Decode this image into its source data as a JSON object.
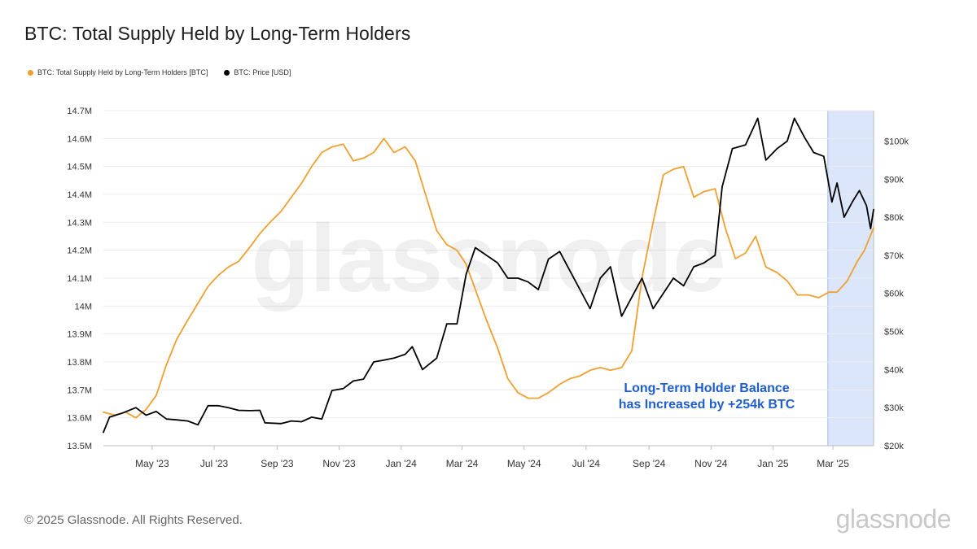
{
  "page": {
    "title": "BTC: Total Supply Held by Long-Term Holders",
    "copyright": "© 2025 Glassnode. All Rights Reserved.",
    "brand": "glassnode",
    "watermark": "glassnode"
  },
  "legend": [
    {
      "label": "BTC: Total Supply Held by Long-Term Holders [BTC]",
      "color": "#f0a030"
    },
    {
      "label": "BTC: Price [USD]",
      "color": "#000000"
    }
  ],
  "annotation": {
    "line1": "Long-Term Holder Balance",
    "line2": "has Increased by +254k BTC",
    "color": "#1f5fcc"
  },
  "chart_data": {
    "type": "line",
    "x_range": [
      "2023-03-14",
      "2025-04-10"
    ],
    "x_ticks": [
      {
        "date": "2023-05-01",
        "label": "May '23"
      },
      {
        "date": "2023-07-01",
        "label": "Jul '23"
      },
      {
        "date": "2023-09-01",
        "label": "Sep '23"
      },
      {
        "date": "2023-11-01",
        "label": "Nov '23"
      },
      {
        "date": "2024-01-01",
        "label": "Jan '24"
      },
      {
        "date": "2024-03-01",
        "label": "Mar '24"
      },
      {
        "date": "2024-05-01",
        "label": "May '24"
      },
      {
        "date": "2024-07-01",
        "label": "Jul '24"
      },
      {
        "date": "2024-09-01",
        "label": "Sep '24"
      },
      {
        "date": "2024-11-01",
        "label": "Nov '24"
      },
      {
        "date": "2025-01-01",
        "label": "Jan '25"
      },
      {
        "date": "2025-03-01",
        "label": "Mar '25"
      }
    ],
    "y_left": {
      "range": [
        13.5,
        14.7
      ],
      "unit": "M BTC",
      "ticks": [
        {
          "value": 13.5,
          "label": "13.5M"
        },
        {
          "value": 13.6,
          "label": "13.6M"
        },
        {
          "value": 13.7,
          "label": "13.7M"
        },
        {
          "value": 13.8,
          "label": "13.8M"
        },
        {
          "value": 13.9,
          "label": "13.9M"
        },
        {
          "value": 14.0,
          "label": "14M"
        },
        {
          "value": 14.1,
          "label": "14.1M"
        },
        {
          "value": 14.2,
          "label": "14.2M"
        },
        {
          "value": 14.3,
          "label": "14.3M"
        },
        {
          "value": 14.4,
          "label": "14.4M"
        },
        {
          "value": 14.5,
          "label": "14.5M"
        },
        {
          "value": 14.6,
          "label": "14.6M"
        },
        {
          "value": 14.7,
          "label": "14.7M"
        }
      ]
    },
    "y_right": {
      "range": [
        20000,
        108000
      ],
      "unit": "USD",
      "ticks": [
        {
          "value": 20000,
          "label": "$20k"
        },
        {
          "value": 30000,
          "label": "$30k"
        },
        {
          "value": 40000,
          "label": "$40k"
        },
        {
          "value": 50000,
          "label": "$50k"
        },
        {
          "value": 60000,
          "label": "$60k"
        },
        {
          "value": 70000,
          "label": "$70k"
        },
        {
          "value": 80000,
          "label": "$80k"
        },
        {
          "value": 90000,
          "label": "$90k"
        },
        {
          "value": 100000,
          "label": "$100k"
        }
      ]
    },
    "highlight": {
      "start": "2025-02-24",
      "end": "2025-04-10",
      "color": "#dbe6fb"
    },
    "grid": "horizontal",
    "legend_position": "top-left",
    "series": [
      {
        "name": "BTC: Total Supply Held by Long-Term Holders [BTC]",
        "axis": "left",
        "color": "#f0a030",
        "points": [
          [
            "2023-03-14",
            13.62
          ],
          [
            "2023-03-25",
            13.61
          ],
          [
            "2023-04-05",
            13.62
          ],
          [
            "2023-04-15",
            13.6
          ],
          [
            "2023-04-25",
            13.63
          ],
          [
            "2023-05-05",
            13.68
          ],
          [
            "2023-05-15",
            13.79
          ],
          [
            "2023-05-25",
            13.88
          ],
          [
            "2023-06-05",
            13.95
          ],
          [
            "2023-06-15",
            14.01
          ],
          [
            "2023-06-25",
            14.07
          ],
          [
            "2023-07-05",
            14.11
          ],
          [
            "2023-07-15",
            14.14
          ],
          [
            "2023-07-25",
            14.16
          ],
          [
            "2023-08-05",
            14.21
          ],
          [
            "2023-08-15",
            14.26
          ],
          [
            "2023-08-25",
            14.3
          ],
          [
            "2023-09-05",
            14.34
          ],
          [
            "2023-09-15",
            14.39
          ],
          [
            "2023-09-25",
            14.44
          ],
          [
            "2023-10-05",
            14.5
          ],
          [
            "2023-10-15",
            14.55
          ],
          [
            "2023-10-25",
            14.57
          ],
          [
            "2023-11-05",
            14.58
          ],
          [
            "2023-11-15",
            14.52
          ],
          [
            "2023-11-25",
            14.53
          ],
          [
            "2023-12-05",
            14.55
          ],
          [
            "2023-12-15",
            14.6
          ],
          [
            "2023-12-25",
            14.55
          ],
          [
            "2024-01-05",
            14.57
          ],
          [
            "2024-01-15",
            14.52
          ],
          [
            "2024-01-25",
            14.4
          ],
          [
            "2024-02-05",
            14.27
          ],
          [
            "2024-02-15",
            14.22
          ],
          [
            "2024-02-25",
            14.2
          ],
          [
            "2024-03-05",
            14.15
          ],
          [
            "2024-03-15",
            14.05
          ],
          [
            "2024-03-25",
            13.95
          ],
          [
            "2024-04-05",
            13.85
          ],
          [
            "2024-04-15",
            13.74
          ],
          [
            "2024-04-25",
            13.69
          ],
          [
            "2024-05-05",
            13.67
          ],
          [
            "2024-05-15",
            13.67
          ],
          [
            "2024-05-25",
            13.69
          ],
          [
            "2024-06-05",
            13.72
          ],
          [
            "2024-06-15",
            13.74
          ],
          [
            "2024-06-25",
            13.75
          ],
          [
            "2024-07-05",
            13.77
          ],
          [
            "2024-07-15",
            13.78
          ],
          [
            "2024-07-25",
            13.77
          ],
          [
            "2024-08-05",
            13.78
          ],
          [
            "2024-08-15",
            13.84
          ],
          [
            "2024-08-25",
            14.1
          ],
          [
            "2024-09-05",
            14.3
          ],
          [
            "2024-09-15",
            14.47
          ],
          [
            "2024-09-25",
            14.49
          ],
          [
            "2024-10-05",
            14.5
          ],
          [
            "2024-10-15",
            14.39
          ],
          [
            "2024-10-25",
            14.41
          ],
          [
            "2024-11-05",
            14.42
          ],
          [
            "2024-11-15",
            14.28
          ],
          [
            "2024-11-25",
            14.17
          ],
          [
            "2024-12-05",
            14.19
          ],
          [
            "2024-12-15",
            14.25
          ],
          [
            "2024-12-25",
            14.14
          ],
          [
            "2025-01-05",
            14.12
          ],
          [
            "2025-01-15",
            14.09
          ],
          [
            "2025-01-25",
            14.04
          ],
          [
            "2025-02-05",
            14.04
          ],
          [
            "2025-02-15",
            14.03
          ],
          [
            "2025-02-25",
            14.05
          ],
          [
            "2025-03-05",
            14.05
          ],
          [
            "2025-03-15",
            14.09
          ],
          [
            "2025-03-25",
            14.16
          ],
          [
            "2025-04-01",
            14.2
          ],
          [
            "2025-04-10",
            14.28
          ]
        ]
      },
      {
        "name": "BTC: Price [USD]",
        "axis": "right",
        "color": "#000000",
        "points": [
          [
            "2023-03-14",
            23500
          ],
          [
            "2023-03-20",
            27500
          ],
          [
            "2023-04-01",
            28500
          ],
          [
            "2023-04-15",
            30000
          ],
          [
            "2023-04-25",
            28000
          ],
          [
            "2023-05-05",
            29000
          ],
          [
            "2023-05-15",
            27000
          ],
          [
            "2023-05-25",
            26800
          ],
          [
            "2023-06-05",
            26500
          ],
          [
            "2023-06-15",
            25500
          ],
          [
            "2023-06-25",
            30500
          ],
          [
            "2023-07-05",
            30500
          ],
          [
            "2023-07-15",
            30000
          ],
          [
            "2023-07-25",
            29300
          ],
          [
            "2023-08-05",
            29200
          ],
          [
            "2023-08-15",
            29300
          ],
          [
            "2023-08-20",
            26000
          ],
          [
            "2023-09-05",
            25800
          ],
          [
            "2023-09-15",
            26500
          ],
          [
            "2023-09-25",
            26300
          ],
          [
            "2023-10-05",
            27500
          ],
          [
            "2023-10-15",
            27000
          ],
          [
            "2023-10-25",
            34500
          ],
          [
            "2023-11-05",
            35000
          ],
          [
            "2023-11-15",
            37000
          ],
          [
            "2023-11-25",
            37500
          ],
          [
            "2023-12-05",
            42000
          ],
          [
            "2023-12-15",
            42500
          ],
          [
            "2023-12-25",
            43000
          ],
          [
            "2024-01-05",
            44000
          ],
          [
            "2024-01-12",
            46000
          ],
          [
            "2024-01-22",
            40000
          ],
          [
            "2024-02-05",
            43000
          ],
          [
            "2024-02-15",
            52000
          ],
          [
            "2024-02-25",
            52000
          ],
          [
            "2024-03-05",
            65000
          ],
          [
            "2024-03-14",
            72000
          ],
          [
            "2024-03-25",
            70000
          ],
          [
            "2024-04-05",
            68000
          ],
          [
            "2024-04-15",
            64000
          ],
          [
            "2024-04-25",
            64000
          ],
          [
            "2024-05-05",
            63000
          ],
          [
            "2024-05-15",
            61000
          ],
          [
            "2024-05-25",
            69000
          ],
          [
            "2024-06-05",
            71000
          ],
          [
            "2024-06-15",
            66000
          ],
          [
            "2024-06-25",
            61000
          ],
          [
            "2024-07-05",
            56000
          ],
          [
            "2024-07-15",
            64000
          ],
          [
            "2024-07-25",
            67000
          ],
          [
            "2024-08-05",
            54000
          ],
          [
            "2024-08-15",
            59000
          ],
          [
            "2024-08-25",
            64000
          ],
          [
            "2024-09-05",
            56000
          ],
          [
            "2024-09-15",
            60000
          ],
          [
            "2024-09-25",
            64000
          ],
          [
            "2024-10-05",
            62000
          ],
          [
            "2024-10-15",
            67000
          ],
          [
            "2024-10-25",
            68000
          ],
          [
            "2024-11-05",
            70000
          ],
          [
            "2024-11-12",
            88000
          ],
          [
            "2024-11-22",
            98000
          ],
          [
            "2024-12-05",
            99000
          ],
          [
            "2024-12-17",
            106000
          ],
          [
            "2024-12-25",
            95000
          ],
          [
            "2025-01-05",
            98000
          ],
          [
            "2025-01-15",
            100000
          ],
          [
            "2025-01-22",
            106000
          ],
          [
            "2025-02-01",
            101000
          ],
          [
            "2025-02-10",
            97000
          ],
          [
            "2025-02-20",
            96000
          ],
          [
            "2025-02-28",
            84000
          ],
          [
            "2025-03-05",
            89000
          ],
          [
            "2025-03-12",
            80000
          ],
          [
            "2025-03-20",
            84000
          ],
          [
            "2025-03-27",
            87000
          ],
          [
            "2025-04-03",
            83000
          ],
          [
            "2025-04-07",
            77000
          ],
          [
            "2025-04-10",
            82000
          ]
        ]
      }
    ]
  }
}
